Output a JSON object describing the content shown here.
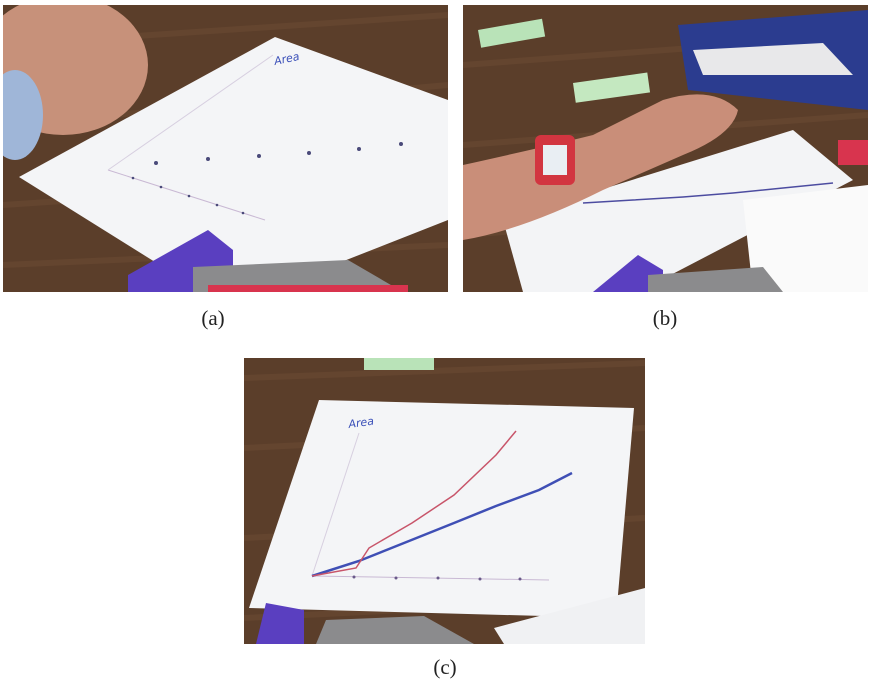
{
  "panels": [
    {
      "caption": "(a)",
      "paper_label": "Area"
    },
    {
      "caption": "(b)"
    },
    {
      "caption": "(c)",
      "paper_label": "Area"
    }
  ]
}
